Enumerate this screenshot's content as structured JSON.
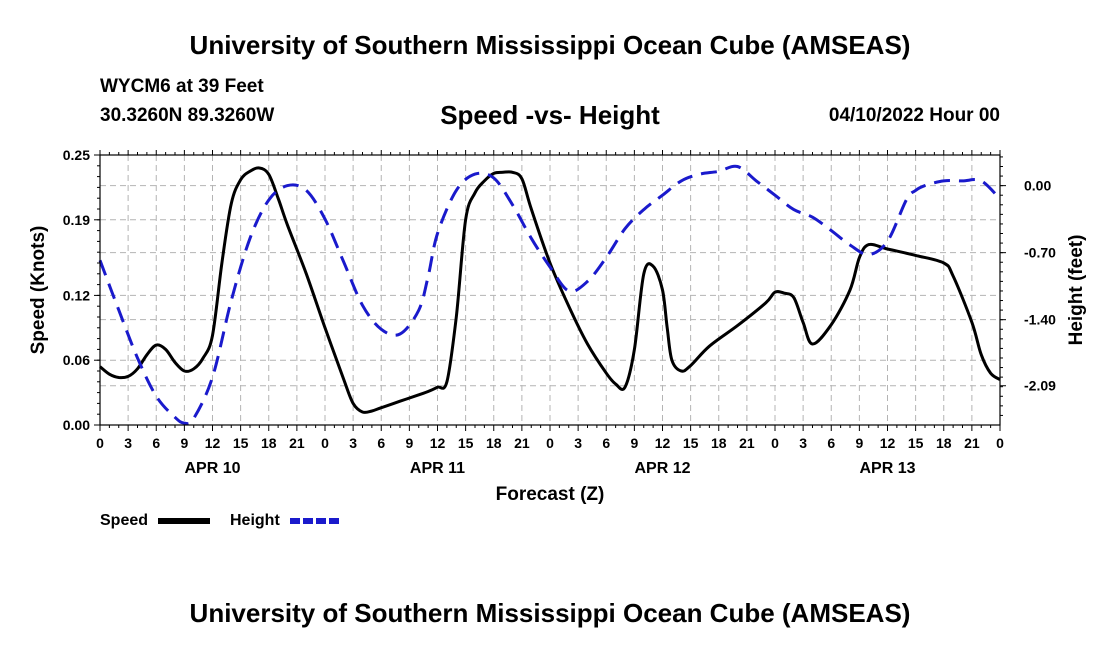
{
  "header": {
    "title": "University of Southern Mississippi Ocean Cube (AMSEAS)",
    "station": "WYCM6 at 39 Feet",
    "coords": "30.3260N  89.3260W",
    "subtitle": "Speed -vs- Height",
    "datetime": "04/10/2022 Hour 00"
  },
  "footer": {
    "title": "University of Southern Mississippi Ocean Cube (AMSEAS)"
  },
  "chart_data": {
    "type": "line",
    "title": "Speed -vs- Height",
    "xlabel": "Forecast (Z)",
    "ylabel": "Speed (Knots)",
    "y2label": "Height (feet)",
    "xlim": [
      0,
      96
    ],
    "ylim": [
      0,
      0.25
    ],
    "y2lim": [
      -2.5,
      0.32
    ],
    "x_tick_labels": [
      "0",
      "3",
      "6",
      "9",
      "12",
      "15",
      "18",
      "21",
      "0",
      "3",
      "6",
      "9",
      "12",
      "15",
      "18",
      "21",
      "0",
      "3",
      "6",
      "9",
      "12",
      "15",
      "18",
      "21",
      "0",
      "3",
      "6",
      "9",
      "12",
      "15",
      "18",
      "21",
      "0"
    ],
    "day_labels": [
      {
        "label": "APR 10",
        "x": 12
      },
      {
        "label": "APR 11",
        "x": 36
      },
      {
        "label": "APR 12",
        "x": 60
      },
      {
        "label": "APR 13",
        "x": 84
      }
    ],
    "y_ticks": [
      0.0,
      0.06,
      0.12,
      0.19,
      0.25
    ],
    "y_tick_labels": [
      "0.00",
      "0.06",
      "0.12",
      "0.19",
      "0.25"
    ],
    "y2_ticks": [
      0.0,
      -0.7,
      -1.4,
      -2.09
    ],
    "y2_tick_labels": [
      "0.00",
      "-0.70",
      "-1.40",
      "-2.09"
    ],
    "grid": true,
    "legend": [
      {
        "name": "Speed",
        "color": "#000000",
        "style": "solid"
      },
      {
        "name": "Height",
        "color": "#1a1acc",
        "style": "dashed"
      }
    ],
    "series": [
      {
        "name": "Speed",
        "axis": "left",
        "color": "#000000",
        "dash": "solid",
        "x": [
          0,
          1,
          2,
          3,
          4,
          5,
          6,
          7,
          8,
          9,
          10,
          11,
          12,
          13,
          14,
          15,
          16,
          17,
          18,
          19,
          20,
          22,
          24,
          26,
          27,
          28,
          29,
          30,
          32,
          34,
          35,
          36,
          37,
          38,
          39,
          40,
          41,
          42,
          43,
          44,
          45,
          46,
          48,
          50,
          52,
          54,
          55,
          56,
          57,
          58,
          59,
          60,
          60.5,
          61,
          62,
          63,
          65,
          68,
          71,
          72,
          73,
          74,
          75,
          76,
          78,
          80,
          81,
          82,
          84,
          87,
          90,
          91,
          93,
          94,
          95,
          96
        ],
        "values": [
          0.054,
          0.047,
          0.044,
          0.045,
          0.052,
          0.065,
          0.074,
          0.07,
          0.058,
          0.05,
          0.052,
          0.062,
          0.083,
          0.15,
          0.205,
          0.227,
          0.235,
          0.238,
          0.232,
          0.21,
          0.185,
          0.14,
          0.09,
          0.042,
          0.02,
          0.012,
          0.013,
          0.016,
          0.022,
          0.028,
          0.031,
          0.035,
          0.04,
          0.1,
          0.19,
          0.215,
          0.226,
          0.233,
          0.234,
          0.234,
          0.228,
          0.2,
          0.15,
          0.11,
          0.075,
          0.048,
          0.038,
          0.035,
          0.07,
          0.14,
          0.147,
          0.125,
          0.09,
          0.06,
          0.05,
          0.055,
          0.073,
          0.092,
          0.113,
          0.123,
          0.122,
          0.118,
          0.095,
          0.075,
          0.093,
          0.125,
          0.155,
          0.167,
          0.163,
          0.157,
          0.15,
          0.138,
          0.095,
          0.065,
          0.048,
          0.042
        ]
      },
      {
        "name": "Height",
        "axis": "right",
        "color": "#1a1acc",
        "dash": "dashed",
        "x": [
          0,
          2,
          4,
          6,
          8,
          9,
          10,
          12,
          14,
          16,
          18,
          20,
          22,
          24,
          26,
          28,
          30,
          32,
          34,
          35,
          36,
          38,
          40,
          42,
          44,
          46,
          48,
          50,
          52,
          54,
          56,
          58,
          60,
          62,
          64,
          66,
          68,
          70,
          72,
          74,
          76,
          78,
          80,
          82,
          84,
          86,
          87,
          88,
          90,
          92,
          94,
          96
        ],
        "values": [
          -0.78,
          -1.3,
          -1.8,
          -2.2,
          -2.42,
          -2.48,
          -2.43,
          -2.0,
          -1.2,
          -0.55,
          -0.15,
          0.0,
          -0.05,
          -0.35,
          -0.8,
          -1.25,
          -1.5,
          -1.55,
          -1.3,
          -0.95,
          -0.5,
          -0.05,
          0.12,
          0.08,
          -0.2,
          -0.55,
          -0.85,
          -1.1,
          -1.0,
          -0.75,
          -0.45,
          -0.25,
          -0.1,
          0.05,
          0.12,
          0.15,
          0.2,
          0.05,
          -0.1,
          -0.25,
          -0.33,
          -0.47,
          -0.62,
          -0.72,
          -0.58,
          -0.15,
          -0.05,
          0.0,
          0.05,
          0.05,
          0.05,
          -0.14
        ]
      }
    ]
  }
}
